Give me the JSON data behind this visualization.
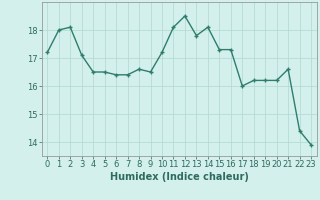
{
  "x": [
    0,
    1,
    2,
    3,
    4,
    5,
    6,
    7,
    8,
    9,
    10,
    11,
    12,
    13,
    14,
    15,
    16,
    17,
    18,
    19,
    20,
    21,
    22,
    23
  ],
  "y": [
    17.2,
    18.0,
    18.1,
    17.1,
    16.5,
    16.5,
    16.4,
    16.4,
    16.6,
    16.5,
    17.2,
    18.1,
    18.5,
    17.8,
    18.1,
    17.3,
    17.3,
    16.0,
    16.2,
    16.2,
    16.2,
    16.6,
    14.4,
    13.9
  ],
  "line_color": "#2e7d6e",
  "marker": "+",
  "markersize": 3,
  "linewidth": 1.0,
  "xlabel": "Humidex (Indice chaleur)",
  "ylim": [
    13.5,
    19.0
  ],
  "yticks": [
    14,
    15,
    16,
    17,
    18
  ],
  "bg_color": "#d4f0ec",
  "grid_color": "#b0d8d2",
  "fg_color": "#2e6b60",
  "xlabel_fontsize": 7,
  "tick_fontsize": 6
}
